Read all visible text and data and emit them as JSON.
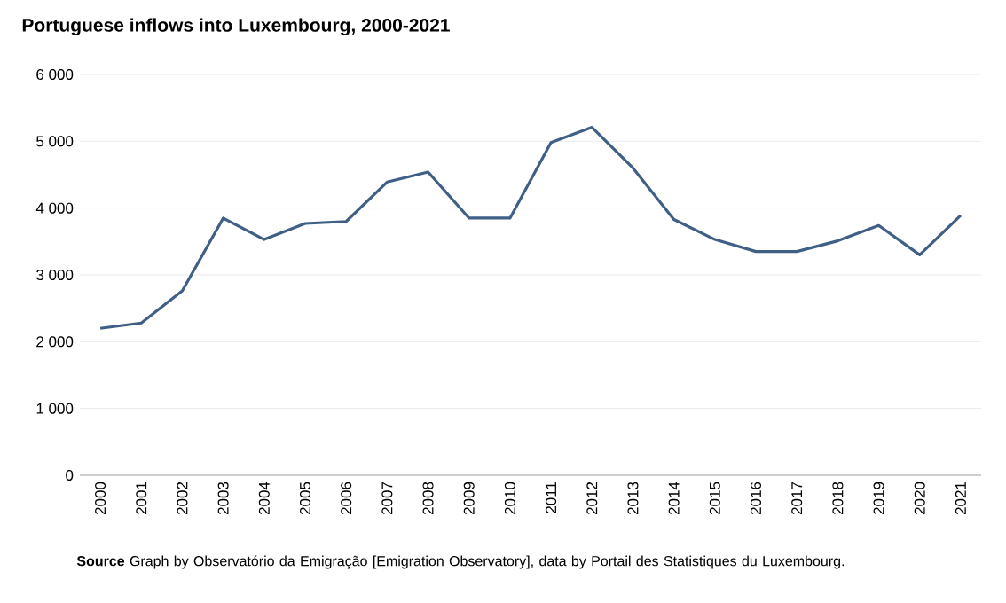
{
  "chart_data": {
    "type": "line",
    "title": "Portuguese  inflows into Luxembourg, 2000-2021",
    "categories": [
      "2000",
      "2001",
      "2002",
      "2003",
      "2004",
      "2005",
      "2006",
      "2007",
      "2008",
      "2009",
      "2010",
      "2011",
      "2012",
      "2013",
      "2014",
      "2015",
      "2016",
      "2017",
      "2018",
      "2019",
      "2020",
      "2021"
    ],
    "series": [
      {
        "color": "#3f5f86",
        "values": [
          2200,
          2280,
          2760,
          3850,
          3530,
          3770,
          3800,
          4390,
          4540,
          3850,
          3850,
          4980,
          5210,
          4600,
          3830,
          3530,
          3350,
          3350,
          3510,
          3740,
          3300,
          3890
        ]
      }
    ],
    "ylim": [
      0,
      6000
    ],
    "yticks": [
      {
        "value": 0,
        "label": "0"
      },
      {
        "value": 1000,
        "label": "1 000"
      },
      {
        "value": 2000,
        "label": "2 000"
      },
      {
        "value": 3000,
        "label": "3 000"
      },
      {
        "value": 4000,
        "label": "4 000"
      },
      {
        "value": 5000,
        "label": "5 000"
      },
      {
        "value": 6000,
        "label": "6 000"
      }
    ],
    "grid": "y",
    "marker": "none",
    "line_style": "solid",
    "annotations": [
      "**Source**  Graph by Observatório da Emigração [Emigration Observatory], data by Portail des Statistiques du Luxembourg."
    ]
  }
}
